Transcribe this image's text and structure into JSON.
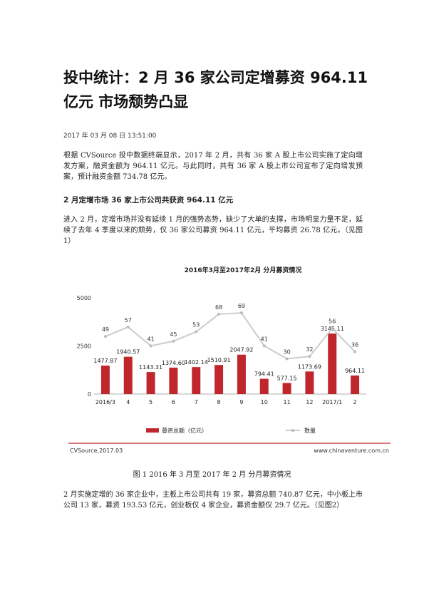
{
  "article": {
    "title": "投中统计：2 月 36 家公司定增募资 964.11 亿元 市场颓势凸显",
    "date": "2017 年 03 月 08 日 13:51:00",
    "para1": "根据 CVSource 投中数据终端显示，2017 年 2 月，共有 36 家 A 股上市公司实施了定向增发方案，融资金额为 964.11 亿元。与此同时，共有 36 家 A 股上市公司宣布了定向增发预案，预计融资金额 734.78 亿元。",
    "heading": "2 月定增市场 36 家上市公司共获资 964.11 亿元",
    "para2": "进入 2 月，定增市场并没有延续 1 月的强势态势，缺少了大单的支撑，市场明显力量不足，延续了去年 4 季度以来的颓势，仅 36 家公司募资 964.11 亿元，平均募资 26.78 亿元。（见图 1）",
    "caption": "图 1 2016 年 3 月至 2017 年 2 月 分月募资情况",
    "para3": "2 月实施定增的 36 家企业中，主板上市公司共有 19 家，募资总额 740.87 亿元，中小板上市公司 13 家，募资 193.53 亿元，创业板仅 4 家企业，募资金额仅 29.7 亿元。（见图2）"
  },
  "chart_data": {
    "type": "bar",
    "title": "2016年3月至2017年2月 分月募资情况",
    "categories": [
      "2016/3",
      "4",
      "5",
      "6",
      "7",
      "8",
      "9",
      "10",
      "11",
      "12",
      "2017/1",
      "2"
    ],
    "series": [
      {
        "name": "募资总额（亿元）",
        "kind": "bar",
        "color": "#c0272d",
        "values": [
          1477.87,
          1940.57,
          1143.31,
          1374.6,
          1402.14,
          1510.91,
          2047.92,
          794.41,
          577.15,
          1173.69,
          3145.11,
          964.11
        ],
        "labels": [
          "1477.87",
          "1940.57",
          "1143.31",
          "1374.60",
          "1402.14",
          "1510.91",
          "2047.92",
          "794.41",
          "577.15",
          "1173.69",
          "3145.11",
          "964.11"
        ]
      },
      {
        "name": "数量",
        "kind": "line",
        "color": "#cccccc",
        "values": [
          49,
          57,
          41,
          45,
          53,
          68,
          69,
          41,
          30,
          32,
          56,
          36
        ]
      }
    ],
    "y_ticks": [
      "0",
      "2500",
      "5000"
    ],
    "ylim": [
      0,
      5000
    ],
    "grid": false,
    "legend": "bottom",
    "source_left": "CVSource,2017.03",
    "source_right": "www.chinaventure.com.cn"
  }
}
